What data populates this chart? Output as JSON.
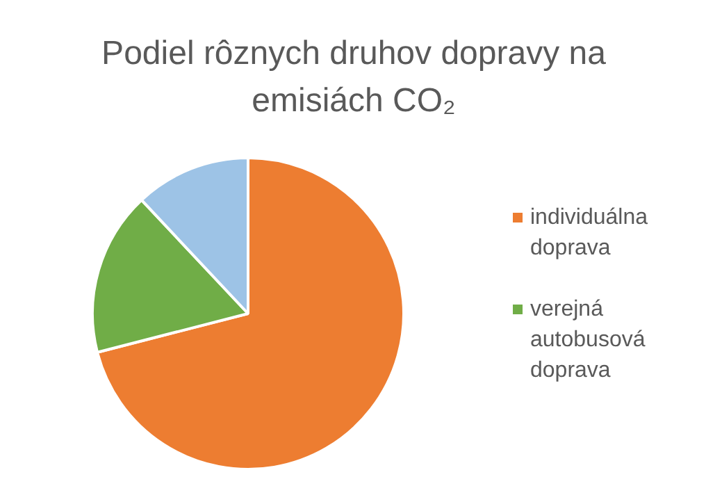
{
  "chart_data": {
    "type": "pie",
    "title": "Podiel rôznych druhov dopravy na emisiách CO₂",
    "categories": [
      "individuálna doprava",
      "verejná autobusová doprava",
      null
    ],
    "values": [
      71,
      17,
      12
    ],
    "colors": [
      "#ed7d31",
      "#70ad47",
      "#9dc3e6"
    ],
    "legend": "right"
  }
}
